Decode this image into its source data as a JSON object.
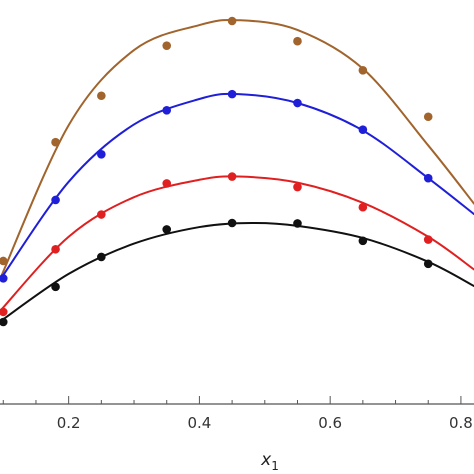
{
  "chart_data": {
    "type": "scatter",
    "xlabel": "x",
    "xlabel_subscript": "1",
    "ylabel": "",
    "xlim": [
      0.095,
      0.82
    ],
    "ylim": [
      0,
      1
    ],
    "x_ticks": [
      0.2,
      0.4,
      0.6,
      0.8
    ],
    "x_tick_labels": [
      "0.2",
      "0.4",
      "0.6",
      "0.8"
    ],
    "grid": false,
    "legend": "none",
    "series": [
      {
        "color": "#a0642c",
        "points": [
          {
            "x": 0.1,
            "y": 0.354
          },
          {
            "x": 0.18,
            "y": 0.648
          },
          {
            "x": 0.25,
            "y": 0.763
          },
          {
            "x": 0.35,
            "y": 0.887
          },
          {
            "x": 0.45,
            "y": 0.948
          },
          {
            "x": 0.55,
            "y": 0.898
          },
          {
            "x": 0.65,
            "y": 0.826
          },
          {
            "x": 0.75,
            "y": 0.711
          }
        ],
        "curve": [
          {
            "x": 0.095,
            "y": 0.309
          },
          {
            "x": 0.2,
            "y": 0.69
          },
          {
            "x": 0.3,
            "y": 0.876
          },
          {
            "x": 0.4,
            "y": 0.938
          },
          {
            "x": 0.46,
            "y": 0.95
          },
          {
            "x": 0.55,
            "y": 0.926
          },
          {
            "x": 0.65,
            "y": 0.83
          },
          {
            "x": 0.75,
            "y": 0.64
          },
          {
            "x": 0.82,
            "y": 0.496
          }
        ]
      },
      {
        "color": "#1f1fd8",
        "points": [
          {
            "x": 0.1,
            "y": 0.311
          },
          {
            "x": 0.18,
            "y": 0.505
          },
          {
            "x": 0.25,
            "y": 0.618
          },
          {
            "x": 0.35,
            "y": 0.727
          },
          {
            "x": 0.45,
            "y": 0.767
          },
          {
            "x": 0.55,
            "y": 0.745
          },
          {
            "x": 0.65,
            "y": 0.679
          },
          {
            "x": 0.75,
            "y": 0.559
          }
        ],
        "curve": [
          {
            "x": 0.095,
            "y": 0.307
          },
          {
            "x": 0.2,
            "y": 0.55
          },
          {
            "x": 0.3,
            "y": 0.692
          },
          {
            "x": 0.4,
            "y": 0.755
          },
          {
            "x": 0.46,
            "y": 0.767
          },
          {
            "x": 0.55,
            "y": 0.745
          },
          {
            "x": 0.65,
            "y": 0.677
          },
          {
            "x": 0.75,
            "y": 0.559
          },
          {
            "x": 0.82,
            "y": 0.47
          }
        ]
      },
      {
        "color": "#e02020",
        "points": [
          {
            "x": 0.1,
            "y": 0.228
          },
          {
            "x": 0.18,
            "y": 0.383
          },
          {
            "x": 0.25,
            "y": 0.469
          },
          {
            "x": 0.35,
            "y": 0.546
          },
          {
            "x": 0.45,
            "y": 0.563
          },
          {
            "x": 0.55,
            "y": 0.537
          },
          {
            "x": 0.65,
            "y": 0.487
          },
          {
            "x": 0.75,
            "y": 0.407
          }
        ],
        "curve": [
          {
            "x": 0.095,
            "y": 0.23
          },
          {
            "x": 0.2,
            "y": 0.414
          },
          {
            "x": 0.3,
            "y": 0.512
          },
          {
            "x": 0.4,
            "y": 0.555
          },
          {
            "x": 0.46,
            "y": 0.563
          },
          {
            "x": 0.55,
            "y": 0.548
          },
          {
            "x": 0.65,
            "y": 0.498
          },
          {
            "x": 0.75,
            "y": 0.414
          },
          {
            "x": 0.82,
            "y": 0.333
          }
        ]
      },
      {
        "color": "#111111",
        "points": [
          {
            "x": 0.1,
            "y": 0.203
          },
          {
            "x": 0.18,
            "y": 0.29
          },
          {
            "x": 0.25,
            "y": 0.364
          },
          {
            "x": 0.35,
            "y": 0.432
          },
          {
            "x": 0.45,
            "y": 0.448
          },
          {
            "x": 0.55,
            "y": 0.447
          },
          {
            "x": 0.65,
            "y": 0.404
          },
          {
            "x": 0.75,
            "y": 0.347
          }
        ],
        "curve": [
          {
            "x": 0.095,
            "y": 0.204
          },
          {
            "x": 0.2,
            "y": 0.322
          },
          {
            "x": 0.3,
            "y": 0.397
          },
          {
            "x": 0.4,
            "y": 0.438
          },
          {
            "x": 0.48,
            "y": 0.448
          },
          {
            "x": 0.55,
            "y": 0.441
          },
          {
            "x": 0.65,
            "y": 0.411
          },
          {
            "x": 0.75,
            "y": 0.352
          },
          {
            "x": 0.82,
            "y": 0.292
          }
        ]
      }
    ]
  }
}
